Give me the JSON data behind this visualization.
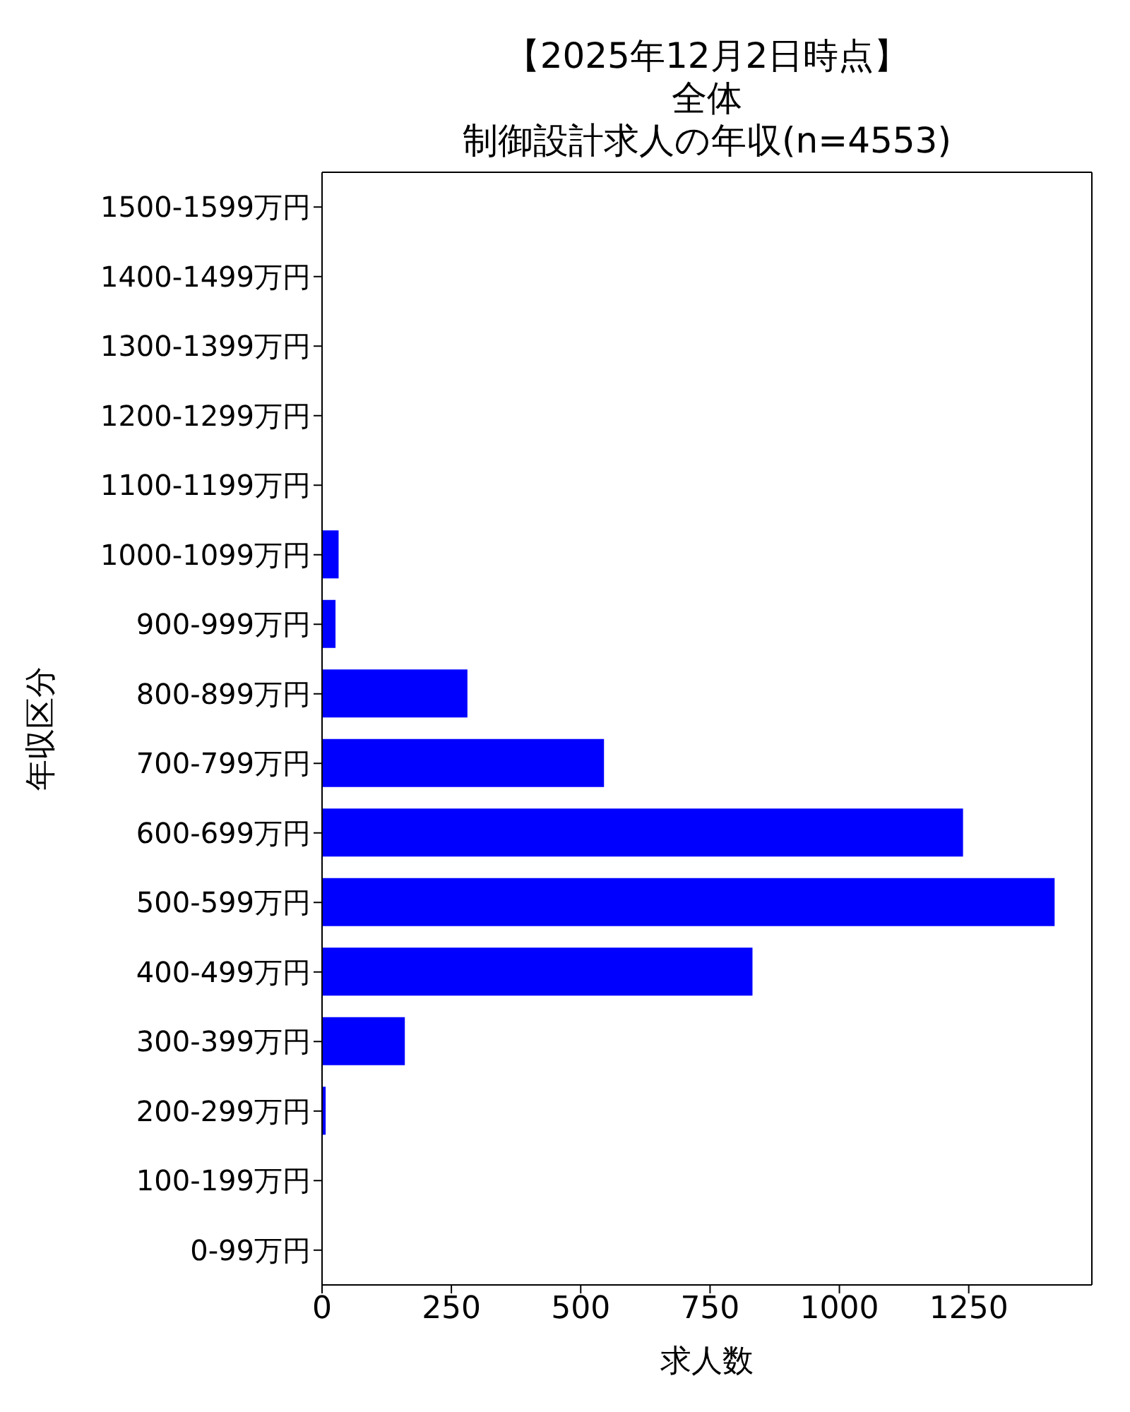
{
  "chart_data": {
    "type": "bar",
    "orientation": "horizontal",
    "annotations": [
      "【2025年12月2日時点】"
    ],
    "subtitle": "全体",
    "title": "制御設計求人の年収(n=4553)",
    "xlabel": "求人数",
    "ylabel": "年収区分",
    "categories": [
      "1500-1599万円",
      "1400-1499万円",
      "1300-1399万円",
      "1200-1299万円",
      "1100-1199万円",
      "1000-1099万円",
      "900-999万円",
      "800-899万円",
      "700-799万円",
      "600-699万円",
      "500-599万円",
      "400-499万円",
      "300-399万円",
      "200-299万円",
      "100-199万円",
      "0-99万円"
    ],
    "values": [
      0,
      0,
      0,
      0,
      0,
      32,
      26,
      281,
      545,
      1239,
      1416,
      832,
      160,
      7,
      0,
      0
    ],
    "color": "#0000ff",
    "xlim": [
      0,
      1488
    ],
    "xticks": [
      0,
      250,
      500,
      750,
      1000,
      1250
    ]
  }
}
